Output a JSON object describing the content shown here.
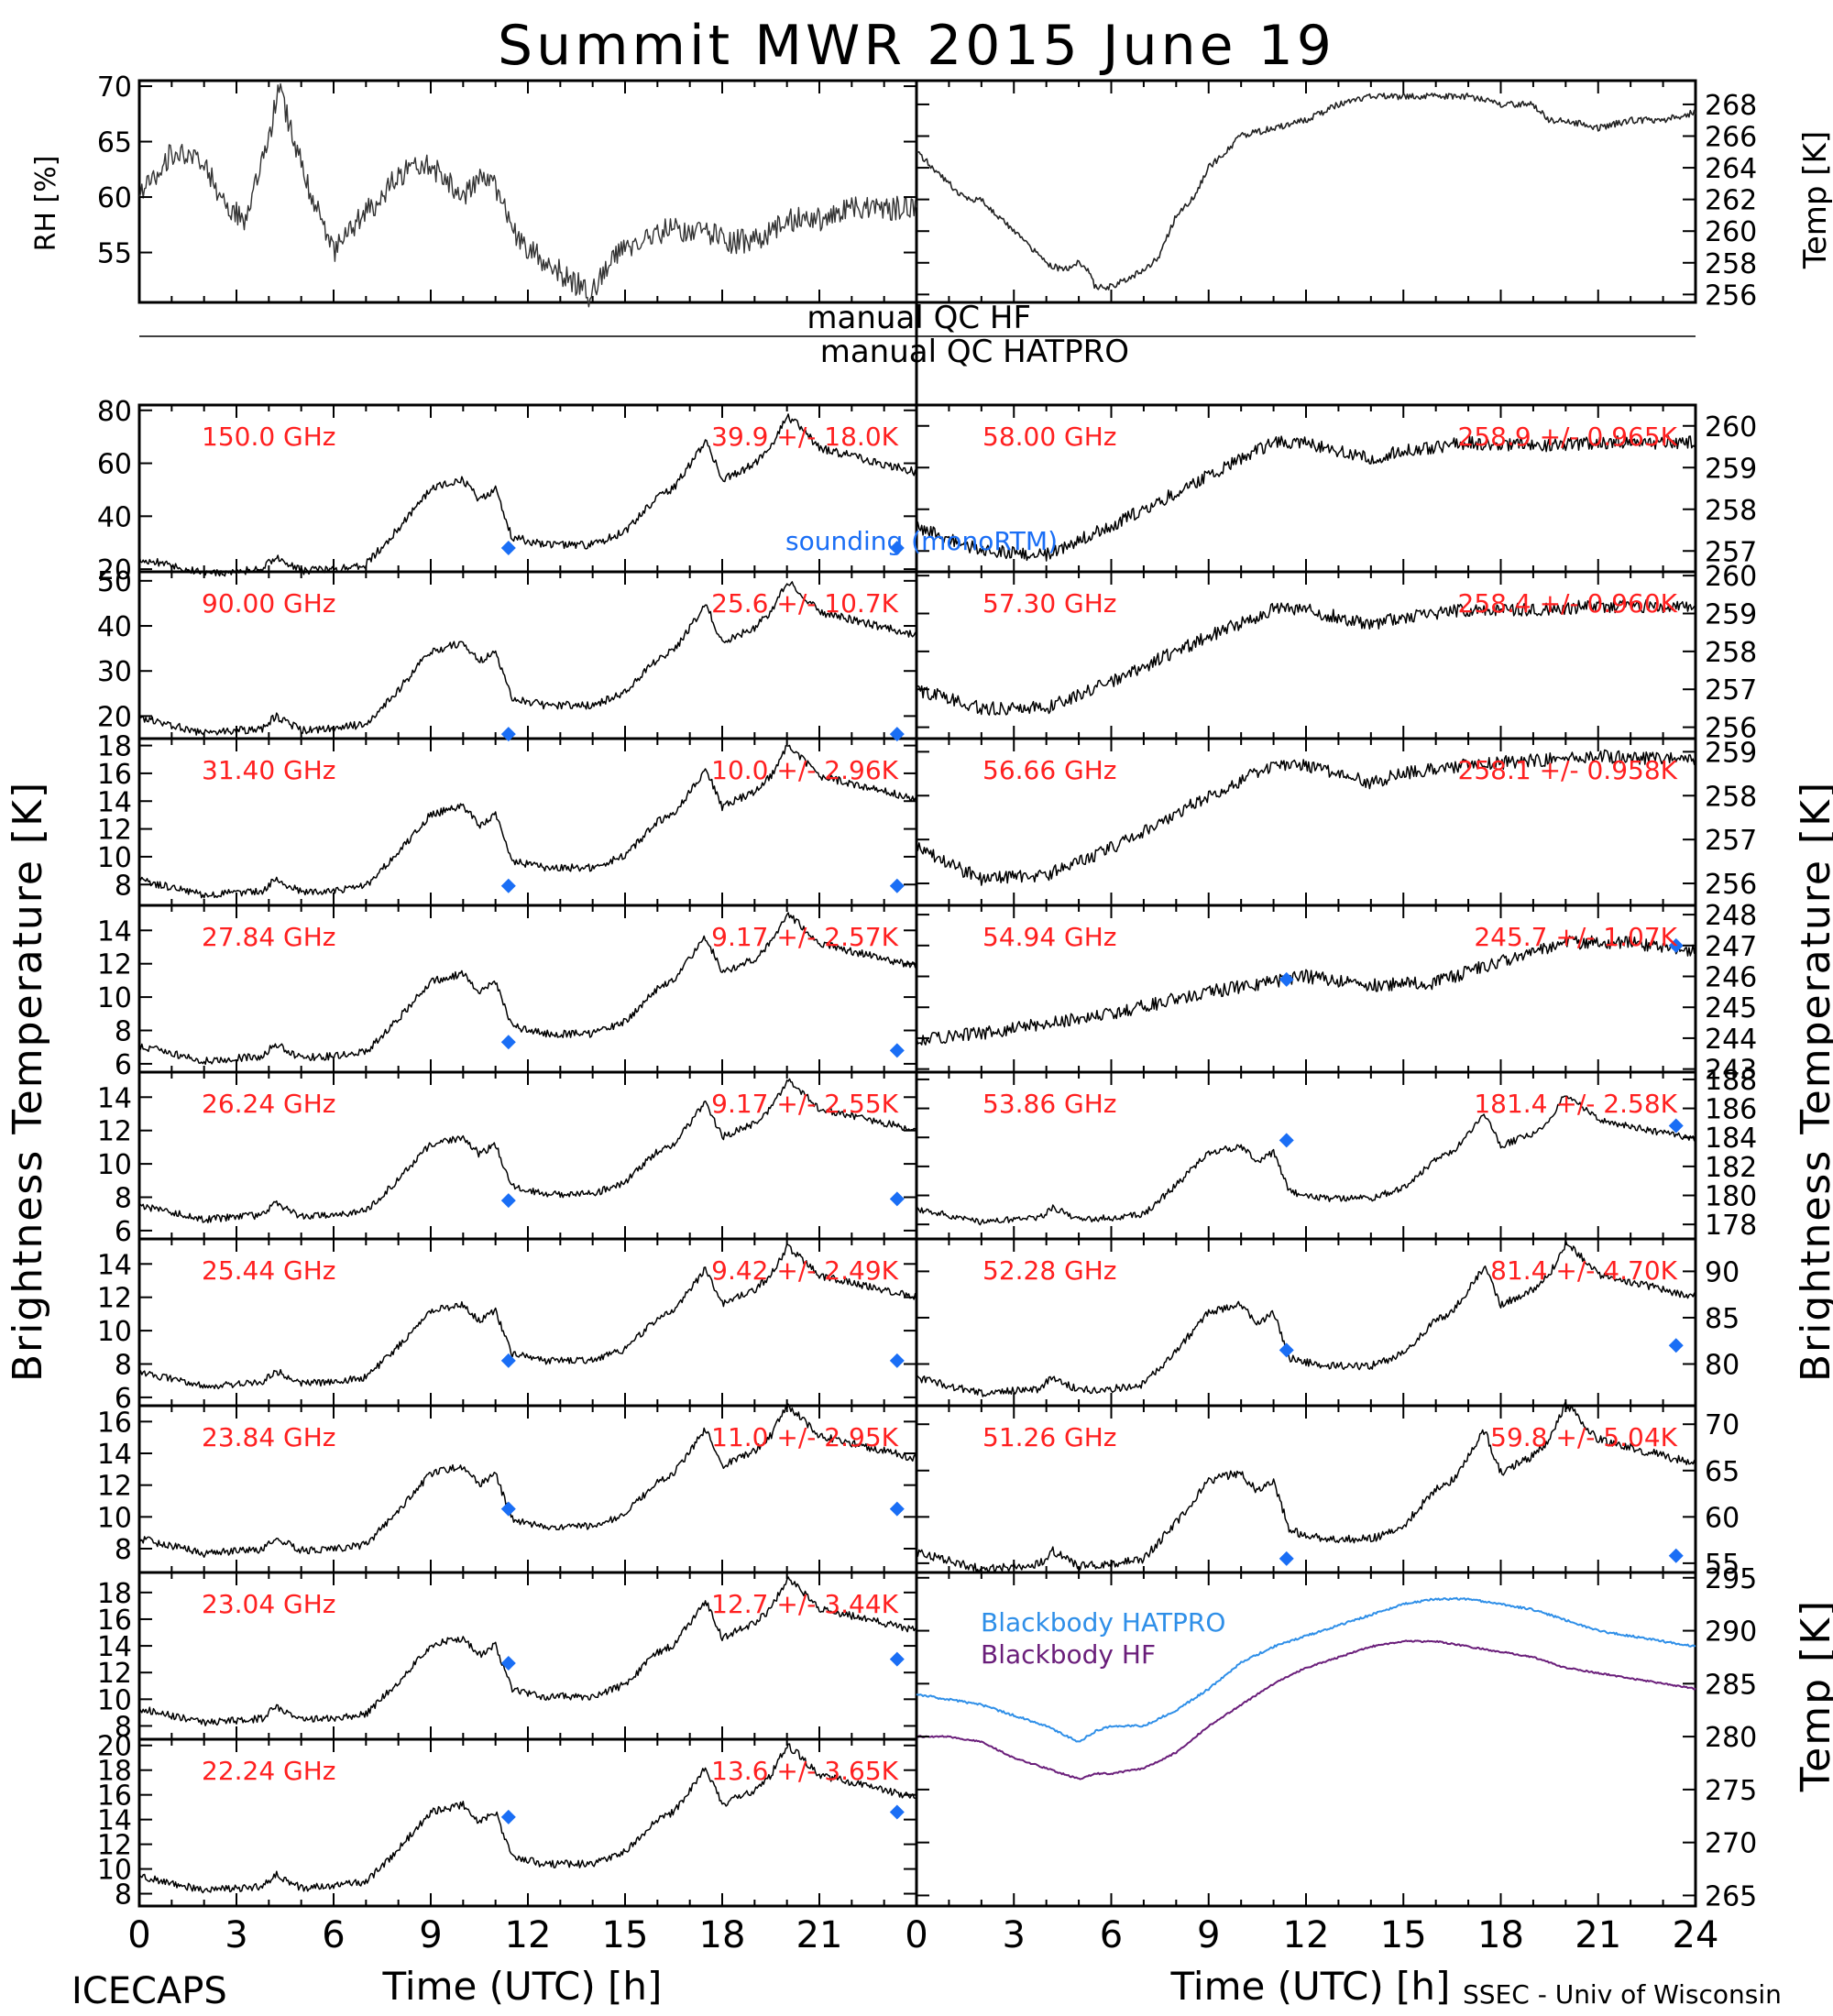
{
  "title": "Summit MWR 2015 June 19",
  "top_panels": {
    "rh": {
      "ylabel": "RH [%]",
      "yticks": [
        55,
        60,
        65,
        70
      ],
      "ylim": [
        50.5,
        70.5
      ]
    },
    "temp": {
      "ylabel": "Temp [K]",
      "yticks": [
        256,
        258,
        260,
        262,
        264,
        266,
        268
      ],
      "ylim": [
        255.5,
        269.5
      ]
    }
  },
  "qc": {
    "hf": "manual QC HF",
    "hatpro": "manual QC HATPRO"
  },
  "axis_labels": {
    "left": "Brightness Temperature [K]",
    "right": "Brightness Temperature [K]",
    "bb_right": "Temp [K]",
    "xlabel": "Time (UTC) [h]"
  },
  "xticks": [
    0,
    3,
    6,
    9,
    12,
    15,
    18,
    21,
    24
  ],
  "xticks_left": [
    0,
    3,
    6,
    9,
    12,
    15,
    18,
    21
  ],
  "legend": {
    "sounding": "sounding (monoRTM)",
    "bb_hatpro": "Blackbody HATPRO",
    "bb_hf": "Blackbody HF"
  },
  "footer": {
    "left": "ICECAPS",
    "right": "SSEC - Univ of Wisconsin"
  },
  "colors": {
    "trace": "#000000",
    "label": "#ff2020",
    "sounding": "#1a6ef5",
    "bb_hatpro": "#2f8fe8",
    "bb_hf": "#6a1e7a"
  },
  "chart_data": {
    "type": "line",
    "x_unit": "hour UTC",
    "rh_series": {
      "x": [
        0,
        1,
        2,
        2.7,
        3.3,
        4,
        4.3,
        5,
        5.7,
        6,
        6.8,
        7.5,
        8,
        8.8,
        9.4,
        10,
        10.7,
        11,
        11.7,
        12.6,
        13.6,
        13.9,
        14.8,
        15.5,
        16.3,
        17.3,
        18.2,
        19,
        20,
        21,
        22,
        22.5,
        23.2,
        24
      ],
      "y": [
        60,
        64,
        63,
        59,
        58,
        65,
        70,
        63,
        57,
        55,
        58,
        60,
        62,
        63,
        62,
        60,
        62,
        61,
        56,
        54,
        52,
        51,
        55,
        56,
        57,
        57,
        56,
        56,
        58,
        58,
        59,
        59,
        59,
        59
      ]
    },
    "temp_series": {
      "x": [
        0,
        0.5,
        1,
        1.5,
        2,
        3,
        4,
        4.5,
        5,
        5.3,
        5.5,
        6,
        7,
        7.5,
        8,
        8.5,
        9,
        10,
        11,
        12,
        13,
        14,
        15,
        16,
        17,
        18,
        19,
        19.5,
        20,
        21,
        22,
        23,
        24
      ],
      "y": [
        265,
        264,
        263,
        262,
        262,
        260,
        258,
        257.5,
        258,
        257.5,
        256.5,
        256.5,
        257.5,
        258.5,
        261,
        262,
        264,
        266,
        266.5,
        267,
        268,
        268.5,
        268.5,
        268.5,
        268.5,
        268,
        268,
        267,
        267,
        266.5,
        267,
        267,
        267.5
      ]
    },
    "hf_channels": [
      {
        "freq": "150.0 GHz",
        "stats": "39.9 +/- 18.0K",
        "ylim": [
          19,
          82
        ],
        "yticks": [
          20,
          40,
          60,
          80
        ],
        "min": 17,
        "max": 78,
        "sounding": [
          28,
          28
        ]
      },
      {
        "freq": "90.00 GHz",
        "stats": "25.6 +/- 10.7K",
        "ylim": [
          15,
          52
        ],
        "yticks": [
          20,
          30,
          40,
          50
        ],
        "min": 15.5,
        "max": 50,
        "sounding": [
          16,
          16
        ]
      },
      {
        "freq": "31.40 GHz",
        "stats": "10.0 +/- 2.96K",
        "ylim": [
          6.5,
          18.5
        ],
        "yticks": [
          8,
          10,
          12,
          14,
          16,
          18
        ],
        "min": 7,
        "max": 18,
        "sounding": [
          7.9,
          7.9
        ]
      },
      {
        "freq": "27.84 GHz",
        "stats": "9.17 +/- 2.57K",
        "ylim": [
          5.5,
          15.5
        ],
        "yticks": [
          6,
          8,
          10,
          12,
          14
        ],
        "min": 6,
        "max": 15,
        "sounding": [
          7.3,
          6.8
        ]
      },
      {
        "freq": "26.24 GHz",
        "stats": "9.17 +/- 2.55K",
        "ylim": [
          5.5,
          15.5
        ],
        "yticks": [
          6,
          8,
          10,
          12,
          14
        ],
        "min": 6.5,
        "max": 15,
        "sounding": [
          7.8,
          7.9
        ]
      },
      {
        "freq": "25.44 GHz",
        "stats": "9.42 +/- 2.49K",
        "ylim": [
          5.5,
          15.5
        ],
        "yticks": [
          6,
          8,
          10,
          12,
          14
        ],
        "min": 6.5,
        "max": 15,
        "sounding": [
          8.2,
          8.2
        ]
      },
      {
        "freq": "23.84 GHz",
        "stats": "11.0 +/- 2.95K",
        "ylim": [
          6.5,
          17
        ],
        "yticks": [
          8,
          10,
          12,
          14,
          16
        ],
        "min": 7.5,
        "max": 17,
        "sounding": [
          10.5,
          10.5
        ]
      },
      {
        "freq": "23.04 GHz",
        "stats": "12.7 +/- 3.44K",
        "ylim": [
          7,
          19.5
        ],
        "yticks": [
          8,
          10,
          12,
          14,
          16,
          18
        ],
        "min": 8,
        "max": 19,
        "sounding": [
          12.7,
          13
        ]
      },
      {
        "freq": "22.24 GHz",
        "stats": "13.6 +/- 3.65K",
        "ylim": [
          7,
          20.5
        ],
        "yticks": [
          8,
          10,
          12,
          14,
          16,
          18,
          20
        ],
        "min": 8,
        "max": 20,
        "sounding": [
          14.2,
          14.6
        ]
      }
    ],
    "hatpro_channels": [
      {
        "freq": "58.00 GHz",
        "stats": "258.9 +/- 0.965K",
        "ylim": [
          256.5,
          260.5
        ],
        "yticks": [
          257,
          258,
          259,
          260
        ],
        "shape": "t58",
        "sounding": null
      },
      {
        "freq": "57.30 GHz",
        "stats": "258.4 +/- 0.960K",
        "ylim": [
          255.7,
          260.1
        ],
        "yticks": [
          256,
          257,
          258,
          259,
          260
        ],
        "shape": "t57",
        "sounding": null
      },
      {
        "freq": "56.66 GHz",
        "stats": "258.1 +/- 0.958K",
        "ylim": [
          255.5,
          259.3
        ],
        "yticks": [
          256,
          257,
          258,
          259
        ],
        "shape": "t56",
        "sounding": null
      },
      {
        "freq": "54.94 GHz",
        "stats": "245.7 +/- 1.07K",
        "ylim": [
          242.9,
          248.3
        ],
        "yticks": [
          243,
          244,
          245,
          246,
          247,
          248
        ],
        "shape": "t54",
        "sounding": [
          245.9,
          247
        ]
      },
      {
        "freq": "53.86 GHz",
        "stats": "181.4 +/- 2.58K",
        "ylim": [
          177,
          188.5
        ],
        "yticks": [
          178,
          180,
          182,
          184,
          186,
          188
        ],
        "shape": "w",
        "min": 178,
        "max": 187,
        "sounding": [
          183.8,
          184.8
        ]
      },
      {
        "freq": "52.28 GHz",
        "stats": "81.4 +/- 4.70K",
        "ylim": [
          75.5,
          93.5
        ],
        "yticks": [
          80,
          85,
          90
        ],
        "shape": "w",
        "min": 76.5,
        "max": 93,
        "sounding": [
          81.5,
          82
        ]
      },
      {
        "freq": "51.26 GHz",
        "stats": "59.8 +/- 5.04K",
        "ylim": [
          54,
          72
        ],
        "yticks": [
          55,
          60,
          65,
          70
        ],
        "shape": "w",
        "min": 54,
        "max": 72,
        "sounding": [
          55.5,
          55.8
        ]
      }
    ],
    "blackbody": {
      "ylim": [
        264,
        295.5
      ],
      "yticks": [
        265,
        270,
        275,
        280,
        285,
        290,
        295
      ],
      "hatpro": {
        "x": [
          0,
          1,
          2,
          3,
          3.5,
          4,
          5,
          5.5,
          6,
          7,
          8,
          9,
          10,
          11,
          12,
          13,
          14,
          15,
          16,
          17,
          18,
          19,
          20,
          21,
          22,
          23,
          24
        ],
        "y": [
          284,
          283.5,
          283,
          282,
          281.5,
          281,
          279.5,
          280.5,
          281,
          281,
          282.5,
          284.5,
          287,
          288.5,
          289.5,
          290.5,
          291.5,
          292.5,
          293,
          293,
          292.5,
          292,
          291,
          290,
          289.5,
          289,
          288.5
        ]
      },
      "hf": {
        "x": [
          0,
          1,
          2,
          3,
          4,
          5,
          5.5,
          6,
          7,
          8,
          9,
          10,
          11,
          12,
          13,
          14,
          15,
          16,
          17,
          18,
          19,
          20,
          21,
          22,
          23,
          24
        ],
        "y": [
          280,
          280,
          279.5,
          278,
          277,
          276,
          276.5,
          276.5,
          277,
          278.5,
          281,
          283,
          285,
          286.5,
          287.5,
          288.5,
          289,
          289,
          288.5,
          288,
          287.5,
          286.5,
          286,
          285.5,
          285,
          284.5
        ]
      }
    }
  }
}
